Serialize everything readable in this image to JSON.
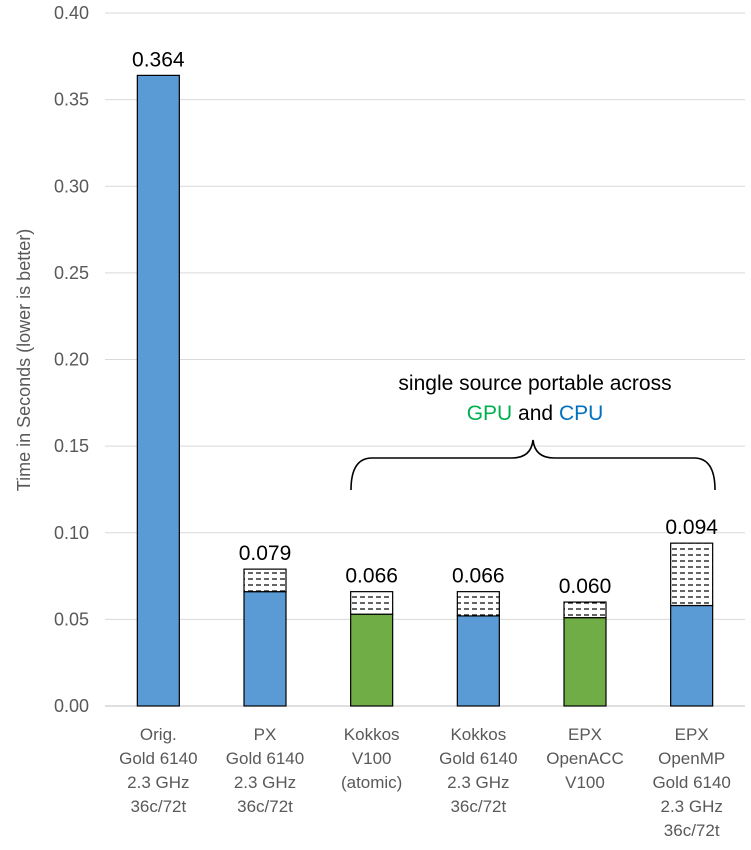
{
  "chart_data": {
    "type": "bar",
    "stacked": true,
    "ylabel": "Time in Seconds (lower is better)",
    "ylim": [
      0,
      0.4
    ],
    "yticks": [
      "0.00",
      "0.05",
      "0.10",
      "0.15",
      "0.20",
      "0.25",
      "0.30",
      "0.35",
      "0.40"
    ],
    "grid": true,
    "categories": [
      [
        "Orig.",
        "Gold 6140",
        "2.3 GHz",
        "36c/72t"
      ],
      [
        "PX",
        "Gold 6140",
        "2.3 GHz",
        "36c/72t"
      ],
      [
        "Kokkos",
        "V100",
        "(atomic)"
      ],
      [
        "Kokkos",
        "Gold 6140",
        "2.3 GHz",
        "36c/72t"
      ],
      [
        "EPX",
        "OpenACC",
        "V100"
      ],
      [
        "EPX",
        "OpenMP",
        "Gold 6140",
        "2.3 GHz",
        "36c/72t"
      ]
    ],
    "bars": [
      {
        "base": 0.364,
        "top": 0.0,
        "total_label": "0.364",
        "color": "#5B9BD5"
      },
      {
        "base": 0.066,
        "top": 0.013,
        "total_label": "0.079",
        "color": "#5B9BD5"
      },
      {
        "base": 0.053,
        "top": 0.013,
        "total_label": "0.066",
        "color": "#70AD47"
      },
      {
        "base": 0.052,
        "top": 0.014,
        "total_label": "0.066",
        "color": "#5B9BD5"
      },
      {
        "base": 0.051,
        "top": 0.009,
        "total_label": "0.060",
        "color": "#70AD47"
      },
      {
        "base": 0.058,
        "top": 0.036,
        "total_label": "0.094",
        "color": "#5B9BD5"
      }
    ],
    "annotation": {
      "line1": "single source portable across",
      "gpu": "GPU",
      "and": " and ",
      "cpu": "CPU",
      "gpu_color": "#00B050",
      "cpu_color": "#0070C0"
    }
  }
}
